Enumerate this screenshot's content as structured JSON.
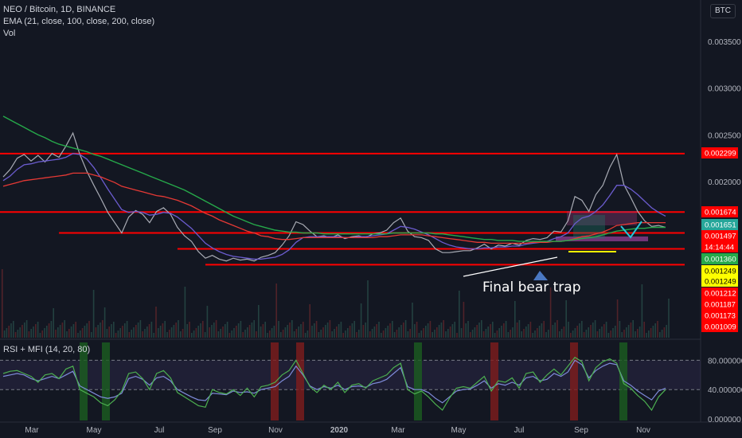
{
  "header": {
    "symbol": "NEO / Bitcoin, 1D, BINANCE",
    "indicator_ema": "EMA (21, close, 100, close, 200, close)",
    "indicator_vol": "Vol",
    "currency_button": "BTC"
  },
  "rsi_panel": {
    "label": "RSI + MFI (14, 20, 80)",
    "ticks": [
      "80.000000",
      "40.000000",
      "0.000000"
    ]
  },
  "annotation": "Final bear trap",
  "colors": {
    "background": "#131722",
    "price_line": "#a8abb4",
    "ema21": "#6b5ccf",
    "ema100": "#e53935",
    "ema200": "#26a94a",
    "level_line": "#ff0000",
    "rsi": "#7e8bd9",
    "mfi": "#4caf50"
  },
  "chart_data": {
    "type": "line",
    "title": "NEO / Bitcoin, 1D, BINANCE",
    "x_axis_labels": [
      "Mar",
      "May",
      "Jul",
      "Sep",
      "Nov",
      "2020",
      "Mar",
      "May",
      "Jul",
      "Sep",
      "Nov"
    ],
    "y_axis_ticks": [
      "0.003500",
      "0.003000",
      "0.002500",
      "0.002000"
    ],
    "ylim": [
      0.00085,
      0.0038
    ],
    "price_labels": [
      {
        "value": "0.002299",
        "color": "#ff0000"
      },
      {
        "value": "0.001674",
        "color": "#ff0000"
      },
      {
        "value": "0.001651",
        "color": "#26a69a"
      },
      {
        "value": "0.001497",
        "color": "#ff0000"
      },
      {
        "value": "14:14:44",
        "color": "#ff0000"
      },
      {
        "value": "0.001360",
        "color": "#26a94a"
      },
      {
        "value": "0.001249",
        "color": "#ffff00"
      },
      {
        "value": "0.001249",
        "color": "#ffff00"
      },
      {
        "value": "0.001212",
        "color": "#ff0000"
      },
      {
        "value": "0.001187",
        "color": "#ff0000"
      },
      {
        "value": "0.001173",
        "color": "#ff0000"
      },
      {
        "value": "0.001009",
        "color": "#ff0000"
      }
    ],
    "horizontal_levels": [
      {
        "value": 0.002299,
        "x_start_index": 0
      },
      {
        "value": 0.001674,
        "x_start_index": 0
      },
      {
        "value": 0.00145,
        "x_start_index": 8
      },
      {
        "value": 0.00128,
        "x_start_index": 25
      },
      {
        "value": 0.00111,
        "x_start_index": 29
      }
    ],
    "series": [
      {
        "name": "NEO/BTC",
        "values": [
          0.00205,
          0.00213,
          0.00225,
          0.00229,
          0.00222,
          0.00228,
          0.00221,
          0.0023,
          0.00226,
          0.00238,
          0.00252,
          0.00229,
          0.00211,
          0.00196,
          0.00182,
          0.00167,
          0.00156,
          0.00145,
          0.00162,
          0.00169,
          0.00165,
          0.00156,
          0.00168,
          0.00172,
          0.00165,
          0.00151,
          0.00142,
          0.00136,
          0.00125,
          0.00118,
          0.00121,
          0.00117,
          0.00115,
          0.00118,
          0.00116,
          0.00117,
          0.00115,
          0.00119,
          0.00121,
          0.00124,
          0.00132,
          0.00142,
          0.00157,
          0.00154,
          0.00147,
          0.00141,
          0.00142,
          0.0014,
          0.00143,
          0.00139,
          0.00141,
          0.00142,
          0.0014,
          0.00144,
          0.00145,
          0.00148,
          0.00156,
          0.00161,
          0.00147,
          0.00141,
          0.0014,
          0.00137,
          0.00128,
          0.00124,
          0.00124,
          0.00125,
          0.00126,
          0.00126,
          0.00129,
          0.00133,
          0.00128,
          0.00132,
          0.00131,
          0.00134,
          0.00132,
          0.00137,
          0.00139,
          0.00138,
          0.0014,
          0.00147,
          0.00146,
          0.00158,
          0.00184,
          0.0018,
          0.00168,
          0.00186,
          0.00196,
          0.00215,
          0.00229,
          0.00197,
          0.00183,
          0.00168,
          0.00158,
          0.00152,
          0.00153,
          0.00151
        ]
      },
      {
        "name": "EMA 21",
        "values": [
          0.00201,
          0.00206,
          0.00213,
          0.00218,
          0.00219,
          0.00221,
          0.00222,
          0.00223,
          0.00224,
          0.00226,
          0.0023,
          0.00229,
          0.00224,
          0.00215,
          0.00204,
          0.00192,
          0.00181,
          0.0017,
          0.00167,
          0.00168,
          0.00167,
          0.00164,
          0.00165,
          0.00167,
          0.00166,
          0.00162,
          0.00156,
          0.0015,
          0.00142,
          0.00134,
          0.00129,
          0.00125,
          0.00122,
          0.0012,
          0.00119,
          0.00118,
          0.00117,
          0.00117,
          0.00118,
          0.00119,
          0.00122,
          0.00127,
          0.00135,
          0.0014,
          0.00141,
          0.00141,
          0.00141,
          0.00141,
          0.00141,
          0.0014,
          0.0014,
          0.00141,
          0.00141,
          0.00142,
          0.00143,
          0.00144,
          0.00148,
          0.00152,
          0.00151,
          0.00149,
          0.00146,
          0.00143,
          0.00139,
          0.00135,
          0.00132,
          0.0013,
          0.00129,
          0.00128,
          0.00128,
          0.00129,
          0.00129,
          0.0013,
          0.0013,
          0.00131,
          0.00131,
          0.00133,
          0.00134,
          0.00135,
          0.00136,
          0.00139,
          0.00141,
          0.00145,
          0.00155,
          0.00161,
          0.00163,
          0.00168,
          0.00175,
          0.00185,
          0.00196,
          0.00196,
          0.00192,
          0.00186,
          0.00179,
          0.00172,
          0.00167,
          0.00163
        ]
      },
      {
        "name": "EMA 100",
        "values": [
          0.00195,
          0.00197,
          0.00199,
          0.00201,
          0.00202,
          0.00203,
          0.00204,
          0.00205,
          0.00206,
          0.00207,
          0.00209,
          0.00209,
          0.00209,
          0.00207,
          0.00205,
          0.00202,
          0.00199,
          0.00195,
          0.00193,
          0.00191,
          0.00189,
          0.00187,
          0.00185,
          0.00184,
          0.00182,
          0.0018,
          0.00177,
          0.00174,
          0.0017,
          0.00166,
          0.00163,
          0.00159,
          0.00156,
          0.00153,
          0.0015,
          0.00147,
          0.00145,
          0.00142,
          0.00141,
          0.00139,
          0.00138,
          0.00138,
          0.00139,
          0.0014,
          0.0014,
          0.0014,
          0.0014,
          0.0014,
          0.0014,
          0.0014,
          0.0014,
          0.0014,
          0.0014,
          0.0014,
          0.00141,
          0.00141,
          0.00142,
          0.00143,
          0.00143,
          0.00143,
          0.00143,
          0.00142,
          0.00141,
          0.0014,
          0.00139,
          0.00138,
          0.00137,
          0.00136,
          0.00135,
          0.00135,
          0.00134,
          0.00134,
          0.00134,
          0.00134,
          0.00134,
          0.00134,
          0.00135,
          0.00135,
          0.00135,
          0.00136,
          0.00136,
          0.00137,
          0.00139,
          0.00141,
          0.00142,
          0.00144,
          0.00146,
          0.00149,
          0.00153,
          0.00154,
          0.00155,
          0.00156,
          0.00156,
          0.00156,
          0.00156,
          0.00156
        ]
      },
      {
        "name": "EMA 200",
        "values": [
          0.0027,
          0.00266,
          0.00262,
          0.00258,
          0.00254,
          0.0025,
          0.00247,
          0.00243,
          0.0024,
          0.00238,
          0.00236,
          0.00234,
          0.00232,
          0.00229,
          0.00227,
          0.00224,
          0.00221,
          0.00218,
          0.00215,
          0.00212,
          0.00209,
          0.00206,
          0.00203,
          0.002,
          0.00197,
          0.00194,
          0.00191,
          0.00187,
          0.00183,
          0.00179,
          0.00175,
          0.00171,
          0.00167,
          0.00163,
          0.0016,
          0.00157,
          0.00154,
          0.00152,
          0.0015,
          0.00148,
          0.00147,
          0.00146,
          0.00146,
          0.00145,
          0.00145,
          0.00145,
          0.00144,
          0.00144,
          0.00144,
          0.00144,
          0.00144,
          0.00144,
          0.00144,
          0.00144,
          0.00144,
          0.00144,
          0.00145,
          0.00145,
          0.00145,
          0.00145,
          0.00145,
          0.00145,
          0.00144,
          0.00144,
          0.00143,
          0.00142,
          0.00141,
          0.0014,
          0.00139,
          0.00138,
          0.00138,
          0.00137,
          0.00137,
          0.00137,
          0.00136,
          0.00136,
          0.00136,
          0.00136,
          0.00136,
          0.00136,
          0.00136,
          0.00137,
          0.00138,
          0.00139,
          0.0014,
          0.00141,
          0.00143,
          0.00145,
          0.00147,
          0.00148,
          0.00149,
          0.0015,
          0.0015,
          0.00151,
          0.00151,
          0.00151
        ]
      }
    ],
    "rsi_series": [
      {
        "name": "RSI",
        "values": [
          58,
          60,
          62,
          60,
          55,
          52,
          55,
          58,
          55,
          60,
          65,
          45,
          40,
          35,
          30,
          28,
          30,
          35,
          55,
          58,
          54,
          46,
          56,
          58,
          52,
          40,
          35,
          30,
          26,
          25,
          35,
          34,
          33,
          38,
          36,
          37,
          35,
          40,
          42,
          44,
          52,
          58,
          72,
          60,
          45,
          40,
          44,
          42,
          46,
          40,
          44,
          45,
          43,
          48,
          50,
          54,
          62,
          70,
          44,
          40,
          40,
          36,
          28,
          22,
          30,
          38,
          40,
          41,
          46,
          52,
          42,
          48,
          46,
          50,
          46,
          56,
          58,
          52,
          54,
          62,
          58,
          64,
          80,
          74,
          56,
          66,
          72,
          76,
          74,
          52,
          46,
          38,
          32,
          26,
          38,
          42
        ]
      },
      {
        "name": "MFI",
        "values": [
          62,
          65,
          66,
          62,
          58,
          50,
          60,
          62,
          55,
          68,
          72,
          40,
          35,
          30,
          22,
          18,
          26,
          38,
          62,
          64,
          55,
          40,
          62,
          66,
          56,
          36,
          30,
          24,
          18,
          16,
          40,
          36,
          34,
          40,
          32,
          42,
          30,
          44,
          46,
          50,
          60,
          66,
          80,
          62,
          44,
          36,
          46,
          40,
          50,
          36,
          46,
          48,
          42,
          52,
          56,
          60,
          70,
          76,
          40,
          34,
          38,
          30,
          20,
          12,
          28,
          42,
          44,
          42,
          50,
          58,
          38,
          52,
          50,
          56,
          42,
          62,
          64,
          50,
          60,
          68,
          60,
          72,
          84,
          78,
          52,
          70,
          78,
          82,
          76,
          48,
          42,
          32,
          24,
          12,
          30,
          40
        ]
      }
    ],
    "rsi_ylim": [
      0,
      100
    ],
    "rsi_levels": [
      80,
      40
    ]
  }
}
